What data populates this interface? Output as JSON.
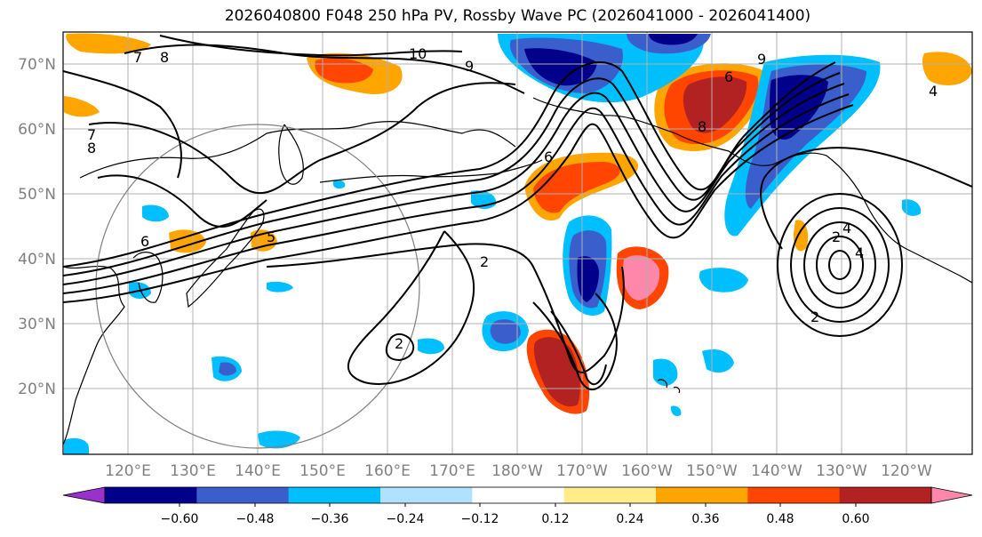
{
  "title": "2026040800 F048 250 hPa PV, Rossby Wave PC (2026041000 - 2026041400)",
  "map": {
    "lat_labels": [
      "70°N",
      "60°N",
      "50°N",
      "40°N",
      "30°N",
      "20°N"
    ],
    "lon_labels": [
      "120°E",
      "130°E",
      "140°E",
      "150°E",
      "160°E",
      "170°E",
      "180°W",
      "170°W",
      "160°W",
      "150°W",
      "140°W",
      "130°W",
      "120°W"
    ],
    "contour_labels": [
      "10",
      "9",
      "8",
      "7",
      "7",
      "8",
      "6",
      "6",
      "5",
      "4",
      "2",
      "2",
      "2",
      "2",
      "4",
      "4",
      "6",
      "8",
      "9"
    ],
    "colors": {
      "land_line": "#000000",
      "grid": "#b0b0b0",
      "circle": "#808080"
    }
  },
  "colorbar": {
    "tick_labels": [
      "−0.60",
      "−0.48",
      "−0.36",
      "−0.24",
      "−0.12",
      "0.12",
      "0.24",
      "0.36",
      "0.48",
      "0.60"
    ],
    "colors": [
      "#9932cc",
      "#00008b",
      "#3a5fcd",
      "#00bfff",
      "#b0e2ff",
      "#ffffff",
      "#ffec8b",
      "#ffa500",
      "#ff4500",
      "#b22222",
      "#ff88aa"
    ]
  }
}
